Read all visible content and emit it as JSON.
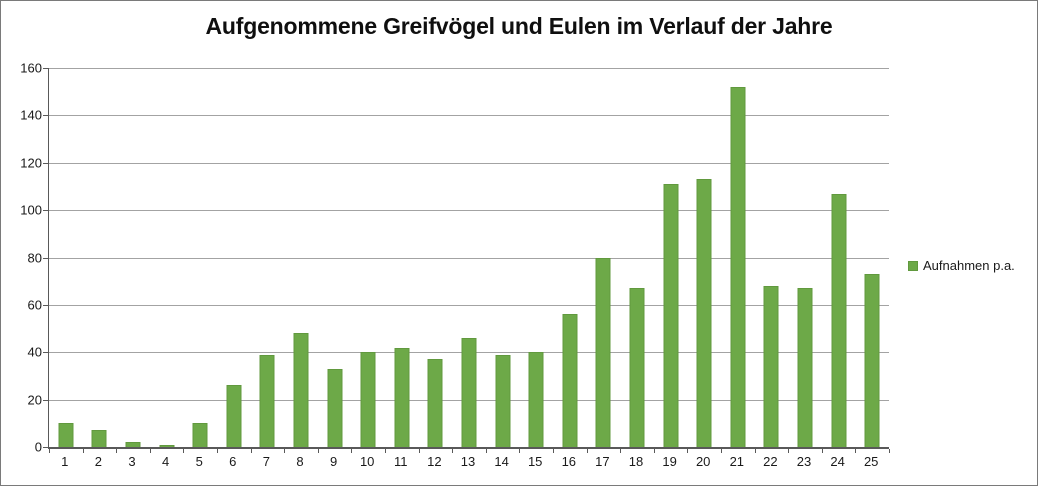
{
  "chart_data": {
    "type": "bar",
    "title": "Aufgenommene Greifvögel und Eulen im Verlauf der Jahre",
    "legend": "Aufnahmen p.a.",
    "legend_position": "right",
    "categories": [
      "1",
      "2",
      "3",
      "4",
      "5",
      "6",
      "7",
      "8",
      "9",
      "10",
      "11",
      "12",
      "13",
      "14",
      "15",
      "16",
      "17",
      "18",
      "19",
      "20",
      "21",
      "22",
      "23",
      "24",
      "25"
    ],
    "values": [
      10,
      7,
      2,
      1,
      10,
      26,
      39,
      48,
      33,
      40,
      42,
      37,
      46,
      39,
      40,
      56,
      80,
      67,
      111,
      113,
      152,
      68,
      67,
      107,
      73
    ],
    "xlabel": "",
    "ylabel": "",
    "ylim": [
      0,
      160
    ],
    "ytick_step": 20,
    "grid": true,
    "colors": {
      "bar_fill": "#6da948",
      "bar_border": "#61993e",
      "gridline": "#a3a3a3",
      "axis": "#595959",
      "text": "#1a1a1a",
      "background": "#ffffff",
      "chart_border": "#7a7a7a"
    }
  }
}
